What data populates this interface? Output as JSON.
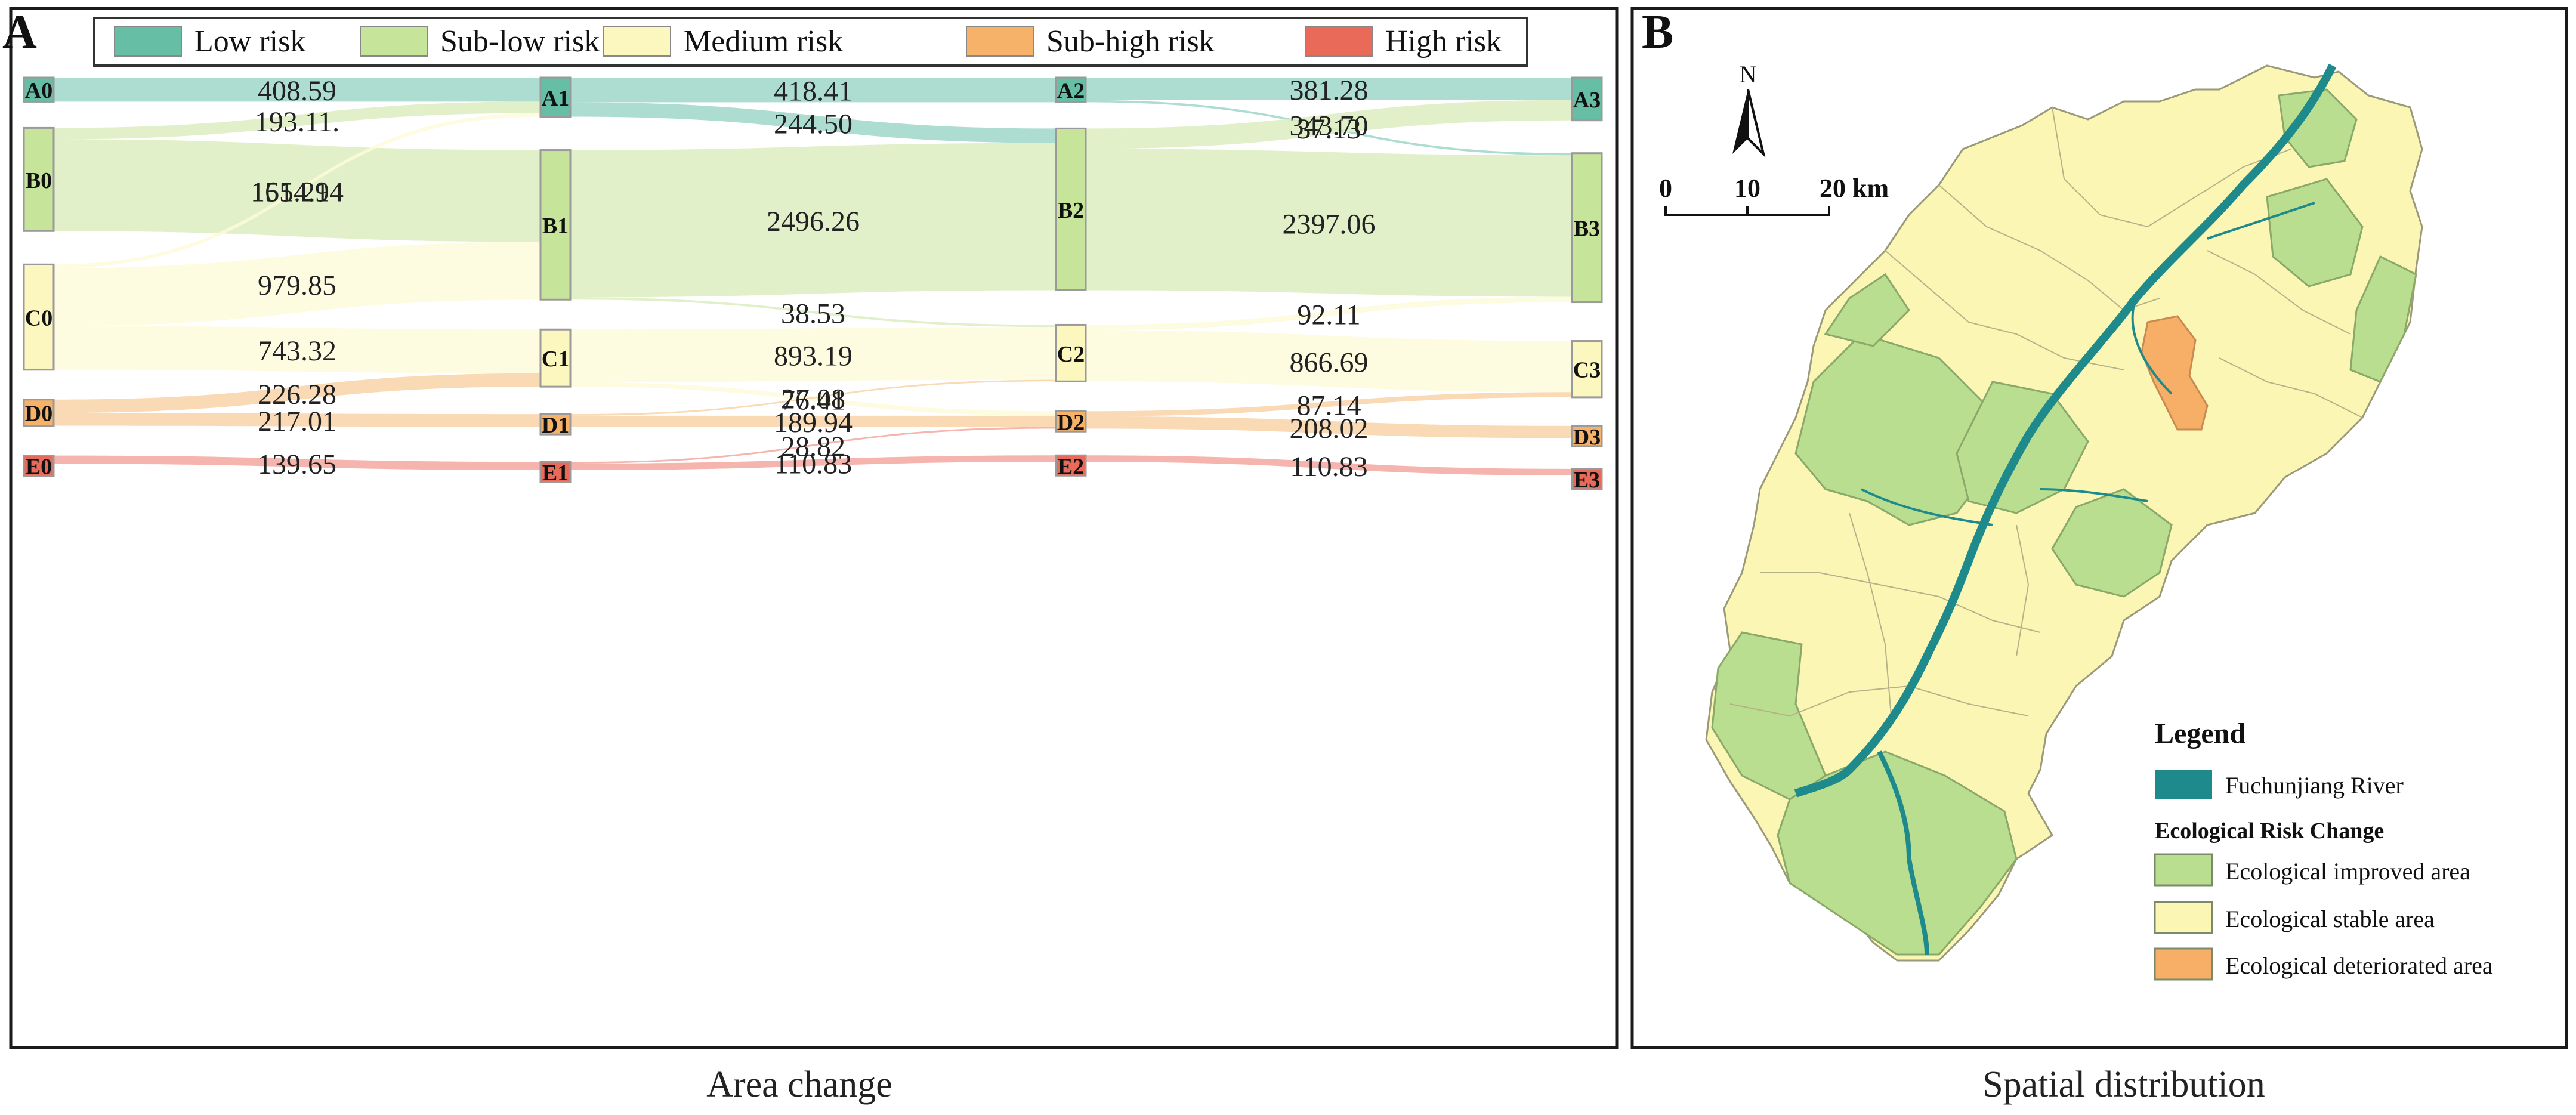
{
  "panel_a": {
    "letter": "A",
    "caption": "Area change"
  },
  "panel_b": {
    "letter": "B",
    "caption": "Spatial distribution",
    "north_label": "N",
    "scale_labels": [
      "0",
      "10",
      "20 km"
    ],
    "legend": {
      "title": "Legend",
      "river_label": "Fuchunjiang River",
      "subtitle": "Ecological Risk Change",
      "items": [
        {
          "label": "Ecological improved area",
          "color": "#b9de8f"
        },
        {
          "label": "Ecological stable area",
          "color": "#fbf6b4"
        },
        {
          "label": "Ecological deteriorated area",
          "color": "#f7ae66"
        }
      ],
      "river_color": "#1f8a8c"
    }
  },
  "chart_data": {
    "type": "sankey",
    "title": "",
    "xlabel": "Area change",
    "legend": [
      {
        "label": "Low risk",
        "color": "#66bfa5"
      },
      {
        "label": "Sub-low risk",
        "color": "#c6e49a"
      },
      {
        "label": "Medium risk",
        "color": "#fcf7bf"
      },
      {
        "label": "Sub-high risk",
        "color": "#f6b268"
      },
      {
        "label": "High risk",
        "color": "#ea6a5a"
      }
    ],
    "stages": [
      {
        "nodes": [
          "A0",
          "B0",
          "C0",
          "D0",
          "E0"
        ]
      },
      {
        "nodes": [
          "A1",
          "B1",
          "C1",
          "D1",
          "E1"
        ]
      },
      {
        "nodes": [
          "A2",
          "B2",
          "C2",
          "D2",
          "E2"
        ]
      },
      {
        "nodes": [
          "A3",
          "B3",
          "C3",
          "D3",
          "E3"
        ]
      }
    ],
    "flows": [
      {
        "source": "A0",
        "target": "A1",
        "value": 408.59,
        "label": "408.59"
      },
      {
        "source": "B0",
        "target": "A1",
        "value": 193.11,
        "label": "193.11."
      },
      {
        "source": "B0",
        "target": "B1",
        "value": 1554.94,
        "label": "1554.94"
      },
      {
        "source": "C0",
        "target": "A1",
        "value": 61.21,
        "label": "61.21"
      },
      {
        "source": "C0",
        "target": "B1",
        "value": 979.85,
        "label": "979.85"
      },
      {
        "source": "C0",
        "target": "C1",
        "value": 743.32,
        "label": "743.32"
      },
      {
        "source": "D0",
        "target": "C1",
        "value": 226.28,
        "label": "226.28"
      },
      {
        "source": "D0",
        "target": "D1",
        "value": 217.01,
        "label": "217.01"
      },
      {
        "source": "E0",
        "target": "E1",
        "value": 139.65,
        "label": "139.65"
      },
      {
        "source": "A1",
        "target": "A2",
        "value": 418.41,
        "label": "418.41"
      },
      {
        "source": "A1",
        "target": "B2",
        "value": 244.5,
        "label": "244.50"
      },
      {
        "source": "B1",
        "target": "B2",
        "value": 2496.26,
        "label": "2496.26"
      },
      {
        "source": "B1",
        "target": "C2",
        "value": 38.53,
        "label": "38.53"
      },
      {
        "source": "C1",
        "target": "C2",
        "value": 893.19,
        "label": "893.19"
      },
      {
        "source": "C1",
        "target": "D2",
        "value": 76.41,
        "label": "76.41"
      },
      {
        "source": "D1",
        "target": "C2",
        "value": 27.08,
        "label": "27.08"
      },
      {
        "source": "D1",
        "target": "D2",
        "value": 189.94,
        "label": "189.94"
      },
      {
        "source": "E1",
        "target": "D2",
        "value": 28.82,
        "label": "28.82"
      },
      {
        "source": "E1",
        "target": "E2",
        "value": 110.83,
        "label": "110.83"
      },
      {
        "source": "A2",
        "target": "A3",
        "value": 381.28,
        "label": "381.28"
      },
      {
        "source": "A2",
        "target": "B3",
        "value": 37.13,
        "label": "37.13"
      },
      {
        "source": "B2",
        "target": "A3",
        "value": 343.7,
        "label": "343.70"
      },
      {
        "source": "B2",
        "target": "B3",
        "value": 2397.06,
        "label": "2397.06"
      },
      {
        "source": "C2",
        "target": "B3",
        "value": 92.11,
        "label": "92.11"
      },
      {
        "source": "C2",
        "target": "C3",
        "value": 866.69,
        "label": "866.69"
      },
      {
        "source": "D2",
        "target": "C3",
        "value": 87.14,
        "label": "87.14"
      },
      {
        "source": "D2",
        "target": "D3",
        "value": 208.02,
        "label": "208.02"
      },
      {
        "source": "E2",
        "target": "E3",
        "value": 110.83,
        "label": "110.83"
      }
    ]
  }
}
